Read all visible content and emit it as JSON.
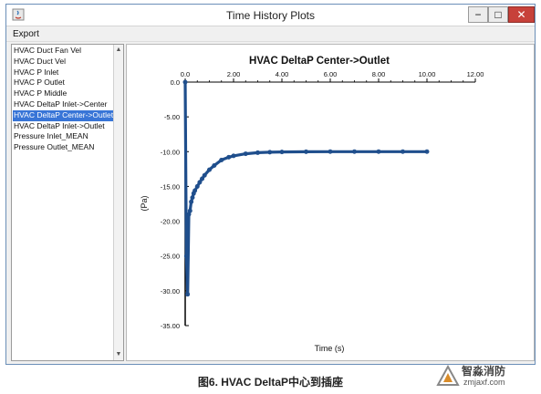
{
  "window": {
    "title": "Time History Plots",
    "minimize_glyph": "−",
    "maximize_glyph": "□",
    "close_glyph": "✕"
  },
  "menu": {
    "export": "Export"
  },
  "sidebar": {
    "items": [
      {
        "label": "HVAC Duct Fan Vel",
        "selected": false
      },
      {
        "label": "HVAC Duct Vel",
        "selected": false
      },
      {
        "label": "HVAC P Inlet",
        "selected": false
      },
      {
        "label": "HVAC P Outlet",
        "selected": false
      },
      {
        "label": "HVAC P Middle",
        "selected": false
      },
      {
        "label": "HVAC DeltaP Inlet->Center",
        "selected": false
      },
      {
        "label": "HVAC DeltaP Center->Outlet",
        "selected": true
      },
      {
        "label": "HVAC DeltaP Inlet->Outlet",
        "selected": false
      },
      {
        "label": "Pressure Inlet_MEAN",
        "selected": false
      },
      {
        "label": "Pressure Outlet_MEAN",
        "selected": false
      }
    ],
    "scroll_up": "▲",
    "scroll_down": "▼"
  },
  "chart_data": {
    "type": "scatter",
    "title": "HVAC DeltaP Center->Outlet",
    "xlabel": "Time (s)",
    "ylabel": "(Pa)",
    "xlim": [
      0,
      12
    ],
    "ylim": [
      -35,
      0
    ],
    "x_ticks": [
      0,
      2,
      4,
      6,
      8,
      10,
      12
    ],
    "x_tick_labels": [
      "0.0",
      "2.00",
      "4.00",
      "6.00",
      "8.00",
      "10.00",
      "12.00"
    ],
    "y_ticks": [
      0,
      -5,
      -10,
      -15,
      -20,
      -25,
      -30,
      -35
    ],
    "y_tick_labels": [
      "0.0",
      "-5.00",
      "-10.00",
      "-15.00",
      "-20.00",
      "-25.00",
      "-30.00",
      "-35.00"
    ],
    "x_axis_position": "top",
    "grid": false,
    "series": [
      {
        "color": "#1f4e8c",
        "x": [
          0.0,
          0.05,
          0.1,
          0.15,
          0.2,
          0.25,
          0.3,
          0.35,
          0.4,
          0.5,
          0.6,
          0.7,
          0.8,
          1.0,
          1.2,
          1.5,
          1.8,
          2.0,
          2.5,
          3.0,
          3.5,
          4.0,
          5.0,
          6.0,
          7.0,
          8.0,
          9.0,
          10.0
        ],
        "y": [
          0.0,
          -25.0,
          -30.5,
          -19.0,
          -18.5,
          -17.2,
          -16.6,
          -16.0,
          -15.6,
          -15.0,
          -14.4,
          -13.9,
          -13.4,
          -12.6,
          -12.0,
          -11.2,
          -10.8,
          -10.6,
          -10.3,
          -10.15,
          -10.08,
          -10.04,
          -10.01,
          -10.0,
          -10.0,
          -10.0,
          -10.0,
          -10.0
        ]
      }
    ]
  },
  "caption": "图6. HVAC DeltaP中心到插座",
  "watermark": {
    "name": "智淼消防",
    "site": "zmjaxf.com"
  }
}
